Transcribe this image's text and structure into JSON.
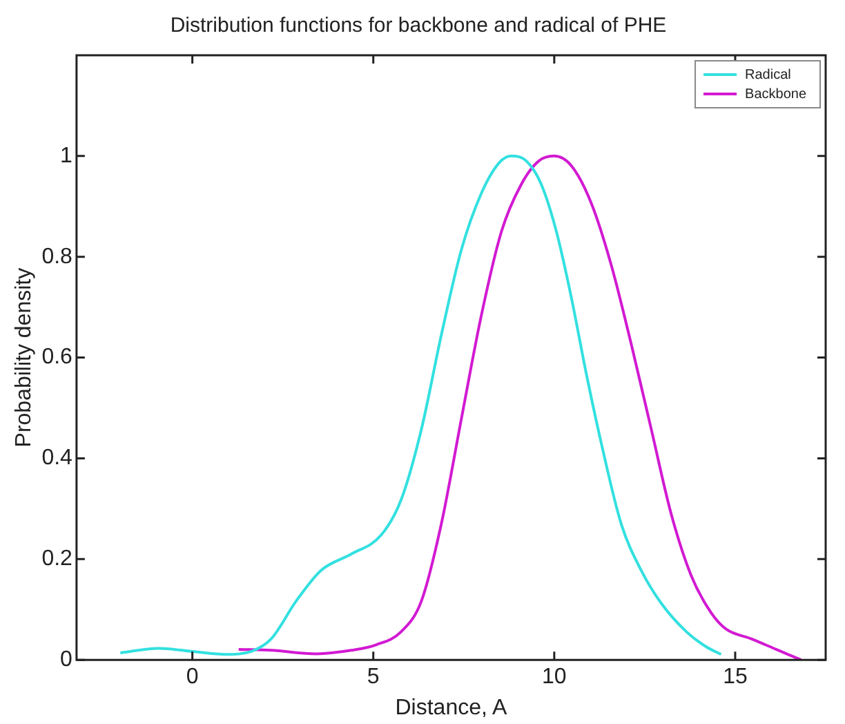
{
  "chart_data": {
    "type": "line",
    "title": "Distribution functions for backbone and radical of PHE",
    "xlabel": "Distance, A",
    "ylabel": "Probability density",
    "xlim": [
      -3.2,
      17.5
    ],
    "xticks": [
      0,
      5,
      10,
      15
    ],
    "ylim": [
      0,
      1.2
    ],
    "yticks": [
      0,
      0.2,
      0.4,
      0.6,
      0.8,
      1
    ],
    "grid": false,
    "legend": "top right",
    "marker": "none",
    "line_style": "solid",
    "series": [
      {
        "name": "Radical",
        "color": "#33e0e0",
        "x": [
          -1.99,
          -0.93,
          -0.03,
          0.94,
          1.63,
          2.18,
          2.87,
          3.56,
          4.39,
          5.22,
          5.77,
          6.33,
          6.88,
          7.43,
          7.98,
          8.47,
          8.81,
          9.23,
          9.64,
          10.06,
          10.47,
          10.88,
          11.3,
          11.85,
          12.4,
          12.96,
          13.65,
          14.2,
          14.61
        ],
        "values": [
          0.014,
          0.023,
          0.017,
          0.011,
          0.017,
          0.042,
          0.117,
          0.178,
          0.21,
          0.248,
          0.318,
          0.458,
          0.645,
          0.813,
          0.925,
          0.986,
          1.0,
          0.99,
          0.944,
          0.85,
          0.72,
          0.57,
          0.43,
          0.27,
          0.178,
          0.112,
          0.056,
          0.026,
          0.011
        ]
      },
      {
        "name": "Backbone",
        "color": "#d21ad2",
        "x": [
          1.28,
          2.18,
          3.43,
          4.39,
          5.08,
          5.77,
          6.33,
          6.88,
          7.43,
          7.98,
          8.54,
          9.09,
          9.57,
          9.99,
          10.47,
          11.02,
          11.57,
          12.13,
          12.68,
          13.23,
          13.78,
          14.34,
          14.75,
          15.44,
          16.13,
          16.82
        ],
        "values": [
          0.021,
          0.019,
          0.012,
          0.019,
          0.03,
          0.056,
          0.117,
          0.27,
          0.477,
          0.682,
          0.85,
          0.944,
          0.99,
          1.0,
          0.981,
          0.907,
          0.785,
          0.626,
          0.458,
          0.29,
          0.168,
          0.093,
          0.061,
          0.042,
          0.021,
          0.0
        ]
      }
    ]
  }
}
